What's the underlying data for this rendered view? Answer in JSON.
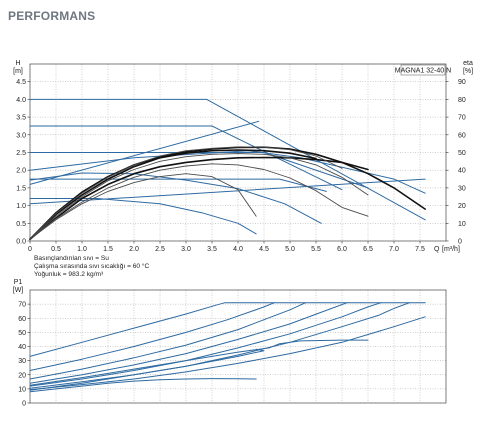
{
  "header": {
    "title": "PERFORMANS"
  },
  "colors": {
    "blue": "#2e6aa1",
    "black": "#111111",
    "dark": "#4a4a4a",
    "grid": "#8a8a8a"
  },
  "chart_data": [
    {
      "type": "line",
      "product_label": "MAGNA1 32-40 N",
      "xlabel": "Q",
      "xunit": "[m³/h]",
      "ylabel": "H",
      "yunit": "[m]",
      "y2label": "eta",
      "y2unit": "[%]",
      "xlim": [
        0,
        8
      ],
      "ylim": [
        0,
        5
      ],
      "y2lim": [
        0,
        100
      ],
      "xticks": [
        "0",
        "0.5",
        "1.0",
        "1.5",
        "2.0",
        "2.5",
        "3.0",
        "3.5",
        "4.0",
        "4.5",
        "5.0",
        "5.5",
        "6.0",
        "6.5",
        "7.0",
        "7.5"
      ],
      "yticks": [
        "0.0",
        "0.5",
        "1.0",
        "1.5",
        "2.0",
        "2.5",
        "3.0",
        "3.5",
        "4.0",
        "4.5"
      ],
      "y2ticks": [
        "0",
        "10",
        "20",
        "30",
        "40",
        "50",
        "60",
        "70",
        "80",
        "90"
      ],
      "conditions": [
        "Basınçlandırılan sıvı = Su",
        "Çalışma sırasında sıvı sıcaklığı = 60 °C",
        "Yoğunluk = 983.2 kg/m³"
      ],
      "grid": true,
      "series": [
        {
          "role": "curve",
          "color": "#2e6aa1",
          "points": [
            [
              0,
              4.0
            ],
            [
              3.4,
              4.0
            ],
            [
              7.6,
              0.6
            ]
          ]
        },
        {
          "role": "curve",
          "color": "#2e6aa1",
          "points": [
            [
              0,
              3.25
            ],
            [
              3.5,
              3.25
            ],
            [
              6.0,
              1.45
            ]
          ]
        },
        {
          "role": "curve",
          "color": "#2e6aa1",
          "points": [
            [
              0,
              2.5
            ],
            [
              4.5,
              2.5
            ],
            [
              6.5,
              1.5
            ]
          ]
        },
        {
          "role": "curve",
          "color": "#2e6aa1",
          "points": [
            [
              0,
              1.75
            ],
            [
              4.8,
              1.75
            ],
            [
              5.7,
              1.4
            ]
          ]
        },
        {
          "role": "curve",
          "color": "#2e6aa1",
          "points": [
            [
              0,
              1.2
            ],
            [
              1.3,
              1.2
            ],
            [
              2.5,
              1.05
            ],
            [
              3.3,
              0.8
            ],
            [
              4.0,
              0.5
            ],
            [
              4.35,
              0.2
            ]
          ]
        },
        {
          "role": "curve",
          "color": "#2e6aa1",
          "points": [
            [
              0,
              1.05
            ],
            [
              7.6,
              1.75
            ]
          ]
        },
        {
          "role": "curve",
          "color": "#2e6aa1",
          "points": [
            [
              0,
              1.6
            ],
            [
              4.4,
              3.38
            ]
          ]
        },
        {
          "role": "curve",
          "color": "#2e6aa1",
          "points": [
            [
              0,
              2.0
            ],
            [
              2.0,
              2.35
            ],
            [
              4.2,
              2.55
            ],
            [
              5.2,
              2.35
            ],
            [
              7.0,
              1.75
            ],
            [
              7.6,
              1.35
            ]
          ]
        },
        {
          "role": "curve",
          "color": "#2e6aa1",
          "points": [
            [
              0,
              1.72
            ],
            [
              1.0,
              1.92
            ],
            [
              2.0,
              1.9
            ],
            [
              3.0,
              1.72
            ],
            [
              4.0,
              1.48
            ],
            [
              4.9,
              1.05
            ],
            [
              5.6,
              0.5
            ]
          ]
        },
        {
          "role": "curve",
          "color": "#111111",
          "points": [
            [
              0,
              0.05
            ],
            [
              0.5,
              0.65
            ],
            [
              1.0,
              1.2
            ],
            [
              1.5,
              1.6
            ],
            [
              2.0,
              1.9
            ],
            [
              2.5,
              2.1
            ],
            [
              3.0,
              2.22
            ],
            [
              3.5,
              2.3
            ],
            [
              4.0,
              2.35
            ],
            [
              4.5,
              2.36
            ],
            [
              5.0,
              2.35
            ],
            [
              5.5,
              2.3
            ],
            [
              6.0,
              2.22
            ],
            [
              6.5,
              2.02
            ]
          ]
        },
        {
          "role": "curve",
          "color": "#111111",
          "points": [
            [
              0,
              0.05
            ],
            [
              0.5,
              0.75
            ],
            [
              1.0,
              1.3
            ],
            [
              1.5,
              1.75
            ],
            [
              2.0,
              2.1
            ],
            [
              2.5,
              2.35
            ],
            [
              3.0,
              2.48
            ],
            [
              3.5,
              2.55
            ],
            [
              4.0,
              2.57
            ],
            [
              4.5,
              2.55
            ],
            [
              5.0,
              2.48
            ],
            [
              5.5,
              2.33
            ]
          ]
        },
        {
          "role": "curve",
          "color": "#111111",
          "points": [
            [
              0,
              0.05
            ],
            [
              0.5,
              0.8
            ],
            [
              1.0,
              1.38
            ],
            [
              1.5,
              1.82
            ],
            [
              2.0,
              2.15
            ],
            [
              2.5,
              2.38
            ],
            [
              3.0,
              2.52
            ],
            [
              3.5,
              2.6
            ],
            [
              4.0,
              2.64
            ],
            [
              4.5,
              2.65
            ],
            [
              5.0,
              2.6
            ],
            [
              5.5,
              2.45
            ],
            [
              6.0,
              2.22
            ],
            [
              6.5,
              1.9
            ],
            [
              7.0,
              1.5
            ],
            [
              7.6,
              0.9
            ]
          ]
        },
        {
          "role": "curve",
          "color": "#4a4a4a",
          "points": [
            [
              0,
              0.05
            ],
            [
              0.5,
              0.6
            ],
            [
              1.0,
              1.05
            ],
            [
              1.5,
              1.4
            ],
            [
              2.0,
              1.65
            ],
            [
              2.5,
              1.82
            ],
            [
              3.0,
              1.9
            ],
            [
              3.5,
              1.82
            ],
            [
              4.0,
              1.45
            ],
            [
              4.35,
              0.7
            ]
          ]
        },
        {
          "role": "curve",
          "color": "#4a4a4a",
          "points": [
            [
              0,
              0.05
            ],
            [
              0.5,
              0.63
            ],
            [
              1.0,
              1.1
            ],
            [
              1.5,
              1.5
            ],
            [
              2.0,
              1.8
            ],
            [
              2.5,
              2.0
            ],
            [
              3.0,
              2.12
            ],
            [
              3.5,
              2.18
            ],
            [
              4.0,
              2.15
            ],
            [
              4.5,
              2.02
            ],
            [
              5.0,
              1.78
            ],
            [
              5.5,
              1.42
            ],
            [
              6.0,
              0.95
            ],
            [
              6.5,
              0.7
            ]
          ]
        },
        {
          "role": "curve",
          "color": "#4a4a4a",
          "points": [
            [
              0,
              0.05
            ],
            [
              0.5,
              0.7
            ],
            [
              1.0,
              1.25
            ],
            [
              1.5,
              1.7
            ],
            [
              2.0,
              2.02
            ],
            [
              2.5,
              2.25
            ],
            [
              3.0,
              2.38
            ],
            [
              3.5,
              2.45
            ],
            [
              4.0,
              2.47
            ],
            [
              4.5,
              2.45
            ],
            [
              5.0,
              2.35
            ],
            [
              5.5,
              2.15
            ],
            [
              6.0,
              1.8
            ],
            [
              6.5,
              1.3
            ]
          ]
        },
        {
          "role": "curve",
          "color": "#4a4a4a",
          "points": [
            [
              0,
              0.05
            ],
            [
              0.5,
              0.78
            ],
            [
              1.0,
              1.35
            ],
            [
              1.5,
              1.8
            ],
            [
              2.0,
              2.15
            ],
            [
              2.5,
              2.4
            ],
            [
              3.0,
              2.55
            ],
            [
              3.5,
              2.62
            ],
            [
              4.0,
              2.66
            ],
            [
              4.5,
              2.65
            ],
            [
              5.0,
              2.58
            ],
            [
              5.5,
              2.4
            ],
            [
              6.0,
              2.05
            ]
          ]
        }
      ]
    },
    {
      "type": "line",
      "ylabel": "P1",
      "yunit": "[W]",
      "xlim": [
        0,
        8
      ],
      "ylim": [
        0,
        80
      ],
      "yticks": [
        "0",
        "10",
        "20",
        "30",
        "40",
        "50",
        "60",
        "70"
      ],
      "grid": true,
      "series": [
        {
          "role": "curve",
          "color": "#2e6aa1",
          "points": [
            [
              0,
              33
            ],
            [
              1.0,
              43
            ],
            [
              2.0,
              53
            ],
            [
              3.0,
              63
            ],
            [
              3.6,
              69.5
            ],
            [
              3.75,
              71
            ],
            [
              7.6,
              71
            ]
          ]
        },
        {
          "role": "curve",
          "color": "#2e6aa1",
          "points": [
            [
              0,
              23
            ],
            [
              1.0,
              31
            ],
            [
              2.0,
              40
            ],
            [
              3.0,
              50
            ],
            [
              3.8,
              59
            ],
            [
              4.5,
              68
            ],
            [
              4.7,
              71
            ]
          ]
        },
        {
          "role": "curve",
          "color": "#2e6aa1",
          "points": [
            [
              0,
              17
            ],
            [
              1.0,
              24
            ],
            [
              2.0,
              32
            ],
            [
              3.0,
              41
            ],
            [
              4.0,
              52
            ],
            [
              4.5,
              59
            ],
            [
              5.0,
              66
            ],
            [
              5.3,
              71
            ]
          ]
        },
        {
          "role": "curve",
          "color": "#2e6aa1",
          "points": [
            [
              0,
              14
            ],
            [
              1.0,
              20
            ],
            [
              2.0,
              27
            ],
            [
              3.0,
              35
            ],
            [
              4.0,
              45
            ],
            [
              5.0,
              56
            ],
            [
              5.8,
              67
            ],
            [
              6.1,
              71
            ]
          ]
        },
        {
          "role": "curve",
          "color": "#2e6aa1",
          "points": [
            [
              0,
              12
            ],
            [
              1.0,
              17
            ],
            [
              2.0,
              23
            ],
            [
              3.0,
              30
            ],
            [
              4.0,
              39
            ],
            [
              5.0,
              49
            ],
            [
              6.0,
              61
            ],
            [
              6.5,
              68
            ],
            [
              6.75,
              71
            ]
          ]
        },
        {
          "role": "curve",
          "color": "#2e6aa1",
          "points": [
            [
              0,
              10.5
            ],
            [
              1.0,
              15
            ],
            [
              2.0,
              20
            ],
            [
              3.0,
              26
            ],
            [
              4.0,
              34
            ],
            [
              5.0,
              43
            ],
            [
              6.0,
              54
            ],
            [
              6.7,
              62
            ],
            [
              7.0,
              67
            ],
            [
              7.3,
              71
            ]
          ]
        },
        {
          "role": "curve",
          "color": "#2e6aa1",
          "points": [
            [
              0,
              9.5
            ],
            [
              1.0,
              13
            ],
            [
              2.0,
              17
            ],
            [
              3.0,
              22
            ],
            [
              4.0,
              28
            ],
            [
              5.0,
              35
            ],
            [
              6.0,
              43
            ],
            [
              7.0,
              54
            ],
            [
              7.6,
              61
            ]
          ]
        },
        {
          "role": "curve",
          "color": "#2e6aa1",
          "points": [
            [
              0,
              12.5
            ],
            [
              1.0,
              18
            ],
            [
              2.0,
              24
            ],
            [
              3.0,
              30
            ],
            [
              4.0,
              36
            ],
            [
              4.6,
              39
            ],
            [
              4.8,
              42
            ],
            [
              5.2,
              44
            ],
            [
              6.0,
              44.5
            ],
            [
              6.5,
              44.5
            ]
          ]
        },
        {
          "role": "curve",
          "color": "#2e6aa1",
          "points": [
            [
              0,
              8
            ],
            [
              0.5,
              10
            ],
            [
              1.0,
              12
            ],
            [
              1.5,
              14
            ],
            [
              2.0,
              15.5
            ],
            [
              2.5,
              16.5
            ],
            [
              3.0,
              17
            ],
            [
              3.5,
              17.3
            ],
            [
              4.0,
              17.2
            ],
            [
              4.35,
              17
            ]
          ]
        },
        {
          "role": "curve",
          "color": "#2e6aa1",
          "points": [
            [
              0,
              9
            ],
            [
              0.7,
              12.5
            ],
            [
              1.0,
              14
            ],
            [
              2.0,
              20
            ],
            [
              3.0,
              26
            ],
            [
              4.0,
              33
            ],
            [
              4.5,
              37
            ],
            [
              4.35,
              38
            ]
          ]
        }
      ]
    }
  ]
}
